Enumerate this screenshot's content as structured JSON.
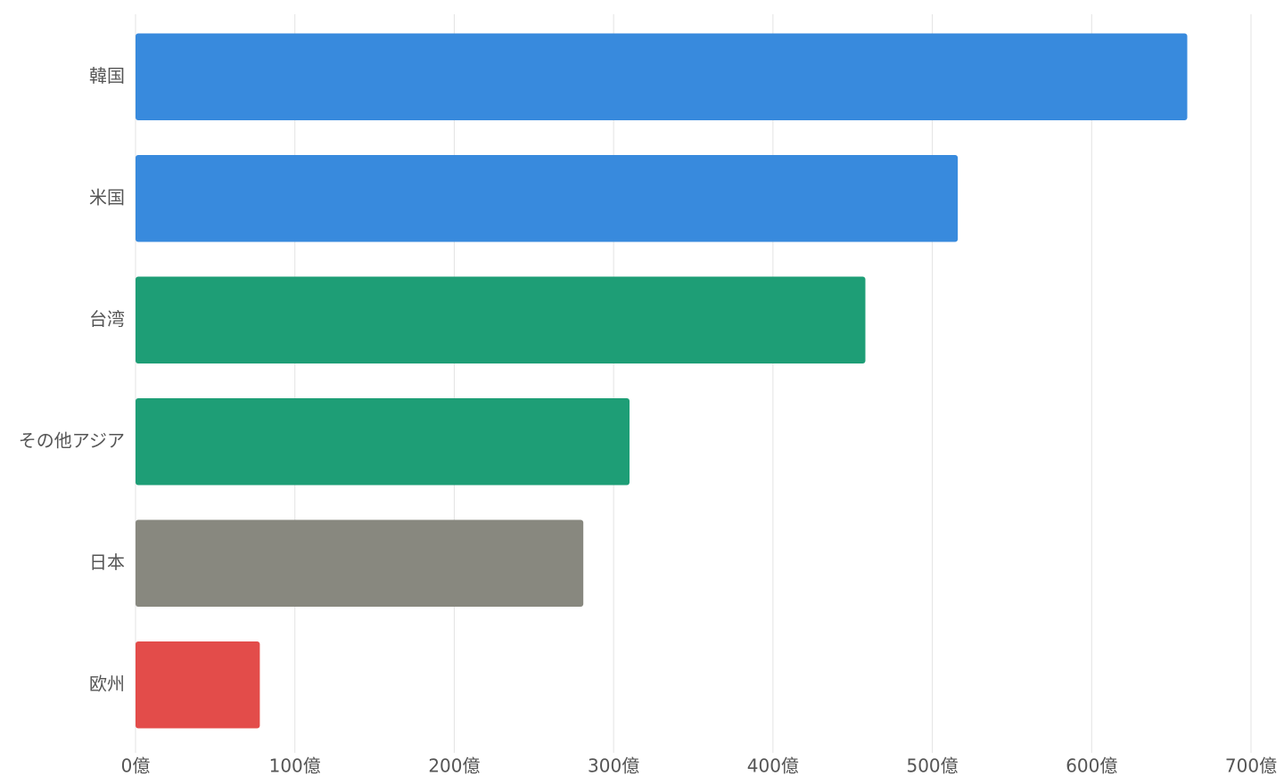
{
  "chart_data": {
    "type": "bar",
    "orientation": "horizontal",
    "categories": [
      "韓国",
      "米国",
      "台湾",
      "その他アジア",
      "日本",
      "欧州"
    ],
    "values": [
      660,
      516,
      458,
      310,
      281,
      78
    ],
    "colors": [
      "#388add",
      "#388add",
      "#1e9e76",
      "#1e9e76",
      "#88887f",
      "#e34c4a"
    ],
    "xlim": [
      0,
      700
    ],
    "xticks": [
      {
        "value": 0,
        "label": "0億"
      },
      {
        "value": 100,
        "label": "100億"
      },
      {
        "value": 200,
        "label": "200億"
      },
      {
        "value": 300,
        "label": "300億"
      },
      {
        "value": 400,
        "label": "400億"
      },
      {
        "value": 500,
        "label": "500億"
      },
      {
        "value": 600,
        "label": "600億"
      },
      {
        "value": 700,
        "label": "700億"
      }
    ],
    "grid": true
  }
}
